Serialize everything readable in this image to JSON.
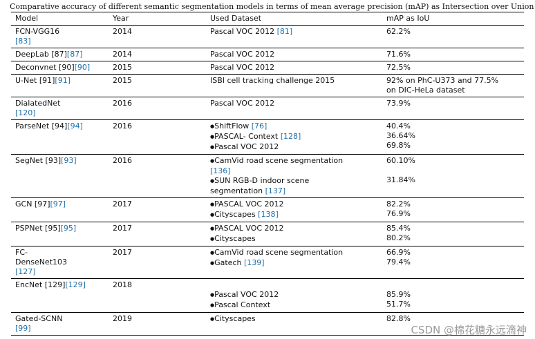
{
  "caption": "Comparative accuracy of different semantic segmentation models in terms of mean average precision (mAP) as Intersection over Union (IoU).",
  "headers": {
    "model": "Model",
    "year": "Year",
    "dataset": "Used Dataset",
    "map": "mAP as IoU"
  },
  "rows": [
    {
      "model": [
        "FCN-VGG16",
        "[83]"
      ],
      "year": "2014",
      "datasets": [
        {
          "text": "Pascal VOC 2012 ",
          "ref": "[81]"
        }
      ],
      "map": [
        "62.2%"
      ]
    },
    {
      "model": [
        "DeepLab [87]"
      ],
      "year": "2014",
      "datasets": [
        {
          "text": "Pascal VOC 2012"
        }
      ],
      "map": [
        "71.6%"
      ]
    },
    {
      "model": [
        "Deconvnet [90]"
      ],
      "year": "2015",
      "datasets": [
        {
          "text": "Pascal VOC 2012"
        }
      ],
      "map": [
        "72.5%"
      ]
    },
    {
      "model": [
        "U-Net [91]"
      ],
      "year": "2015",
      "datasets": [
        {
          "text": "ISBI cell tracking challenge 2015"
        }
      ],
      "map": [
        "92% on PhC-U373 and 77.5%",
        "on DIC-HeLa dataset"
      ]
    },
    {
      "model": [
        "DialatedNet",
        "[120]"
      ],
      "year": "2016",
      "datasets": [
        {
          "text": "Pascal VOC 2012"
        }
      ],
      "map": [
        "73.9%"
      ]
    },
    {
      "model": [
        "ParseNet [94]"
      ],
      "year": "2016",
      "datasets": [
        {
          "text": "ShiftFlow ",
          "ref": "[76]",
          "bullet": true
        },
        {
          "text": "PASCAL- Context ",
          "ref": "[128]",
          "bullet": true
        },
        {
          "text": "Pascal VOC 2012",
          "bullet": true
        }
      ],
      "map": [
        "40.4%",
        "36.64%",
        "69.8%"
      ]
    },
    {
      "model": [
        "SegNet [93]"
      ],
      "year": "2016",
      "datasets": [
        {
          "text": "CamVid road scene segmentation",
          "bullet": true
        },
        {
          "text": "",
          "ref": "[136]"
        },
        {
          "text": "SUN RGB-D indoor scene",
          "bullet": true
        },
        {
          "text": "segmentation ",
          "ref": "[137]"
        }
      ],
      "map": [
        "60.10%",
        "",
        "31.84%"
      ]
    },
    {
      "model": [
        "GCN [97]"
      ],
      "year": "2017",
      "datasets": [
        {
          "text": "PASCAL VOC 2012",
          "bullet": true
        },
        {
          "text": "Cityscapes ",
          "ref": "[138]",
          "bullet": true
        }
      ],
      "map": [
        "82.2%",
        "76.9%"
      ]
    },
    {
      "model": [
        "PSPNet [95]"
      ],
      "year": "2017",
      "datasets": [
        {
          "text": "PASCAL VOC 2012",
          "bullet": true
        },
        {
          "text": "Cityscapes",
          "bullet": true
        }
      ],
      "map": [
        "85.4%",
        "80.2%"
      ]
    },
    {
      "model": [
        "FC-",
        "DenseNet103",
        "[127]"
      ],
      "year": "2017",
      "datasets": [
        {
          "text": "CamVid road scene segmentation",
          "bullet": true
        },
        {
          "text": "Gatech ",
          "ref": "[139]",
          "bullet": true
        }
      ],
      "map": [
        "66.9%",
        "79.4%"
      ]
    },
    {
      "model": [
        "EncNet [129]"
      ],
      "year": "2018",
      "datasets": [
        {
          "text": ""
        },
        {
          "text": "Pascal VOC 2012",
          "bullet": true
        },
        {
          "text": "Pascal Context",
          "bullet": true
        }
      ],
      "map": [
        "",
        "85.9%",
        "51.7%"
      ]
    },
    {
      "model": [
        "Gated-SCNN",
        "[99]"
      ],
      "year": "2019",
      "datasets": [
        {
          "text": "Cityscapes",
          "bullet": true
        }
      ],
      "map": [
        "82.8%"
      ]
    }
  ],
  "watermark": "CSDN @棉花糖永远滴神"
}
